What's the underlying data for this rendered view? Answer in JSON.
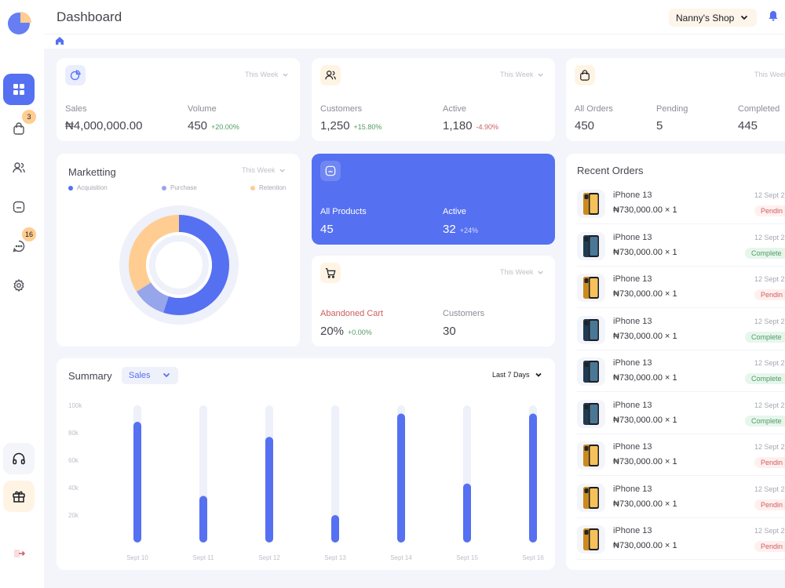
{
  "header": {
    "title": "Dashboard",
    "shop": "Nanny's Shop"
  },
  "sidebar": {
    "items": [
      {
        "name": "dashboard",
        "active": true
      },
      {
        "name": "orders",
        "badge": "3"
      },
      {
        "name": "customers"
      },
      {
        "name": "inventory"
      },
      {
        "name": "conversations",
        "badge": "16"
      },
      {
        "name": "settings"
      }
    ]
  },
  "sales_card": {
    "period": "This Week",
    "sales_label": "Sales",
    "sales_value": "₦4,000,000.00",
    "volume_label": "Volume",
    "volume_value": "450",
    "volume_delta": "+20.00%"
  },
  "customers_card": {
    "period": "This Week",
    "customers_label": "Customers",
    "customers_value": "1,250",
    "customers_delta": "+15.80%",
    "active_label": "Active",
    "active_value": "1,180",
    "active_delta": "-4.90%"
  },
  "orders_card": {
    "period": "This Week",
    "all_label": "All Orders",
    "all_value": "450",
    "pending_label": "Pending",
    "pending_value": "5",
    "completed_label": "Completed",
    "completed_value": "445"
  },
  "marketing": {
    "title": "Marketting",
    "period": "This Week",
    "legend": [
      "Acquisition",
      "Purchase",
      "Retention"
    ],
    "colors": [
      "#5570f1",
      "#97a5eb",
      "#ffcc91"
    ],
    "shares": [
      0.55,
      0.11,
      0.34
    ]
  },
  "products_card": {
    "all_label": "All Products",
    "all_value": "45",
    "active_label": "Active",
    "active_value": "32",
    "active_delta": "+24%"
  },
  "cart_card": {
    "period": "This Week",
    "abandoned_label": "Abandoned Cart",
    "abandoned_value": "20%",
    "abandoned_delta": "+0.00%",
    "customers_label": "Customers",
    "customers_value": "30"
  },
  "summary": {
    "title": "Summary",
    "select": "Sales",
    "range": "Last 7 Days"
  },
  "chart_data": {
    "type": "bar",
    "categories": [
      "Sept 10",
      "Sept 11",
      "Sept 12",
      "Sept 13",
      "Sept 14",
      "Sept 15",
      "Sept 16"
    ],
    "values": [
      88000,
      34000,
      77000,
      20000,
      94000,
      43000,
      94000
    ],
    "ylim": [
      0,
      100000
    ],
    "y_ticks": [
      "100k",
      "80k",
      "60k",
      "40k",
      "20k"
    ],
    "y_tick_values": [
      100000,
      80000,
      60000,
      40000,
      20000
    ],
    "bar_color": "#5570f1",
    "track_color": "#eef0fa"
  },
  "recent_orders": {
    "title": "Recent Orders",
    "items": [
      {
        "name": "iPhone 13",
        "price": "₦730,000.00 × 1",
        "date": "12 Sept 2",
        "status": "Pendin",
        "kind": "pending",
        "phone": "gold"
      },
      {
        "name": "iPhone 13",
        "price": "₦730,000.00 × 1",
        "date": "12 Sept 2",
        "status": "Complete",
        "kind": "complete",
        "phone": "blue"
      },
      {
        "name": "iPhone 13",
        "price": "₦730,000.00 × 1",
        "date": "12 Sept 2",
        "status": "Pendin",
        "kind": "pending",
        "phone": "gold"
      },
      {
        "name": "iPhone 13",
        "price": "₦730,000.00 × 1",
        "date": "12 Sept 2",
        "status": "Complete",
        "kind": "complete",
        "phone": "blue"
      },
      {
        "name": "iPhone 13",
        "price": "₦730,000.00 × 1",
        "date": "12 Sept 2",
        "status": "Complete",
        "kind": "complete",
        "phone": "blue"
      },
      {
        "name": "iPhone 13",
        "price": "₦730,000.00 × 1",
        "date": "12 Sept 2",
        "status": "Complete",
        "kind": "complete",
        "phone": "blue"
      },
      {
        "name": "iPhone 13",
        "price": "₦730,000.00 × 1",
        "date": "12 Sept 2",
        "status": "Pendin",
        "kind": "pending",
        "phone": "gold"
      },
      {
        "name": "iPhone 13",
        "price": "₦730,000.00 × 1",
        "date": "12 Sept 2",
        "status": "Pendin",
        "kind": "pending",
        "phone": "gold"
      },
      {
        "name": "iPhone 13",
        "price": "₦730,000.00 × 1",
        "date": "12 Sept 2",
        "status": "Pendin",
        "kind": "pending",
        "phone": "gold"
      }
    ]
  }
}
